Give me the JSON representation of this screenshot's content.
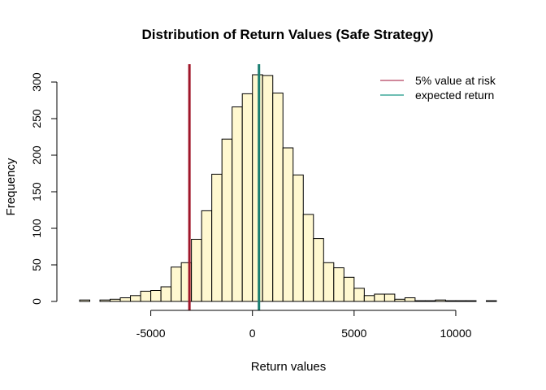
{
  "chart_data": {
    "type": "bar",
    "title": "Distribution of Return Values (Safe Strategy)",
    "xlabel": "Return values",
    "ylabel": "Frequency",
    "bin_width": 500,
    "bins_start": [
      -8500,
      -8000,
      -7500,
      -7000,
      -6500,
      -6000,
      -5500,
      -5000,
      -4500,
      -4000,
      -3500,
      -3000,
      -2500,
      -2000,
      -1500,
      -1000,
      -500,
      0,
      500,
      1000,
      1500,
      2000,
      2500,
      3000,
      3500,
      4000,
      4500,
      5000,
      5500,
      6000,
      6500,
      7000,
      7500,
      8000,
      8500,
      9000,
      9500,
      10000,
      10500,
      11000,
      11500
    ],
    "values": [
      2,
      0,
      2,
      3,
      5,
      8,
      14,
      15,
      20,
      47,
      53,
      85,
      124,
      174,
      222,
      266,
      284,
      310,
      309,
      285,
      210,
      173,
      119,
      86,
      53,
      46,
      33,
      18,
      8,
      10,
      10,
      3,
      5,
      1,
      1,
      2,
      1,
      1,
      1,
      0,
      1
    ],
    "xlim": [
      -8500,
      12000
    ],
    "ylim": [
      0,
      320
    ],
    "x_ticks": [
      -5000,
      0,
      5000,
      10000
    ],
    "x_tick_labels": [
      "-5000",
      "0",
      "5000",
      "10000"
    ],
    "y_ticks": [
      0,
      50,
      100,
      150,
      200,
      250,
      300
    ],
    "y_tick_labels": [
      "0",
      "50",
      "100",
      "150",
      "200",
      "250",
      "300"
    ],
    "bar_color": "#FFF8D0",
    "vlines": [
      {
        "name": "5% value at risk",
        "x": -3100,
        "color": "#A0162A"
      },
      {
        "name": "expected return",
        "x": 320,
        "color": "#1A7F72"
      }
    ],
    "legend": {
      "position": "top-right",
      "items": [
        {
          "label": "5% value at risk",
          "color": "#C0607A"
        },
        {
          "label": "expected return",
          "color": "#3FA89A"
        }
      ]
    },
    "grid": false
  }
}
